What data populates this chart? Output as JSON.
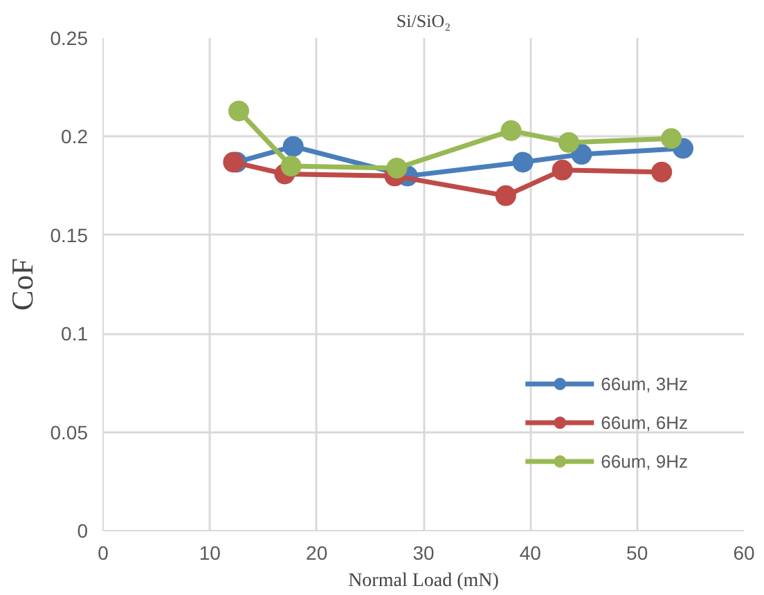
{
  "chart_data": {
    "type": "line",
    "title": "Si/SiO₂",
    "xlabel": "Normal Load (mN)",
    "ylabel": "CoF",
    "xlim": [
      0,
      60
    ],
    "xticks": [
      0,
      10,
      20,
      30,
      40,
      50,
      60
    ],
    "ylim": [
      0,
      0.25
    ],
    "yticks": [
      0,
      0.05,
      0.1,
      0.15,
      0.2,
      0.25
    ],
    "grid": true,
    "legend": "bottom right",
    "marker": "circle",
    "line_style": "solid",
    "series": [
      {
        "name": "66um, 3Hz",
        "color": "#4a7ebb",
        "x": [
          12.5,
          17.8,
          28.5,
          39.3,
          44.8,
          54.3
        ],
        "values": [
          0.187,
          0.195,
          0.18,
          0.187,
          0.191,
          0.194
        ]
      },
      {
        "name": "66um, 6Hz",
        "color": "#be4b48",
        "x": [
          12.2,
          17.0,
          27.3,
          37.7,
          43.0,
          52.3
        ],
        "values": [
          0.187,
          0.181,
          0.18,
          0.17,
          0.183,
          0.182
        ]
      },
      {
        "name": "66um, 9Hz",
        "color": "#98b954",
        "x": [
          12.7,
          17.6,
          27.5,
          38.2,
          43.6,
          53.2
        ],
        "values": [
          0.213,
          0.185,
          0.184,
          0.203,
          0.197,
          0.199
        ]
      }
    ]
  }
}
